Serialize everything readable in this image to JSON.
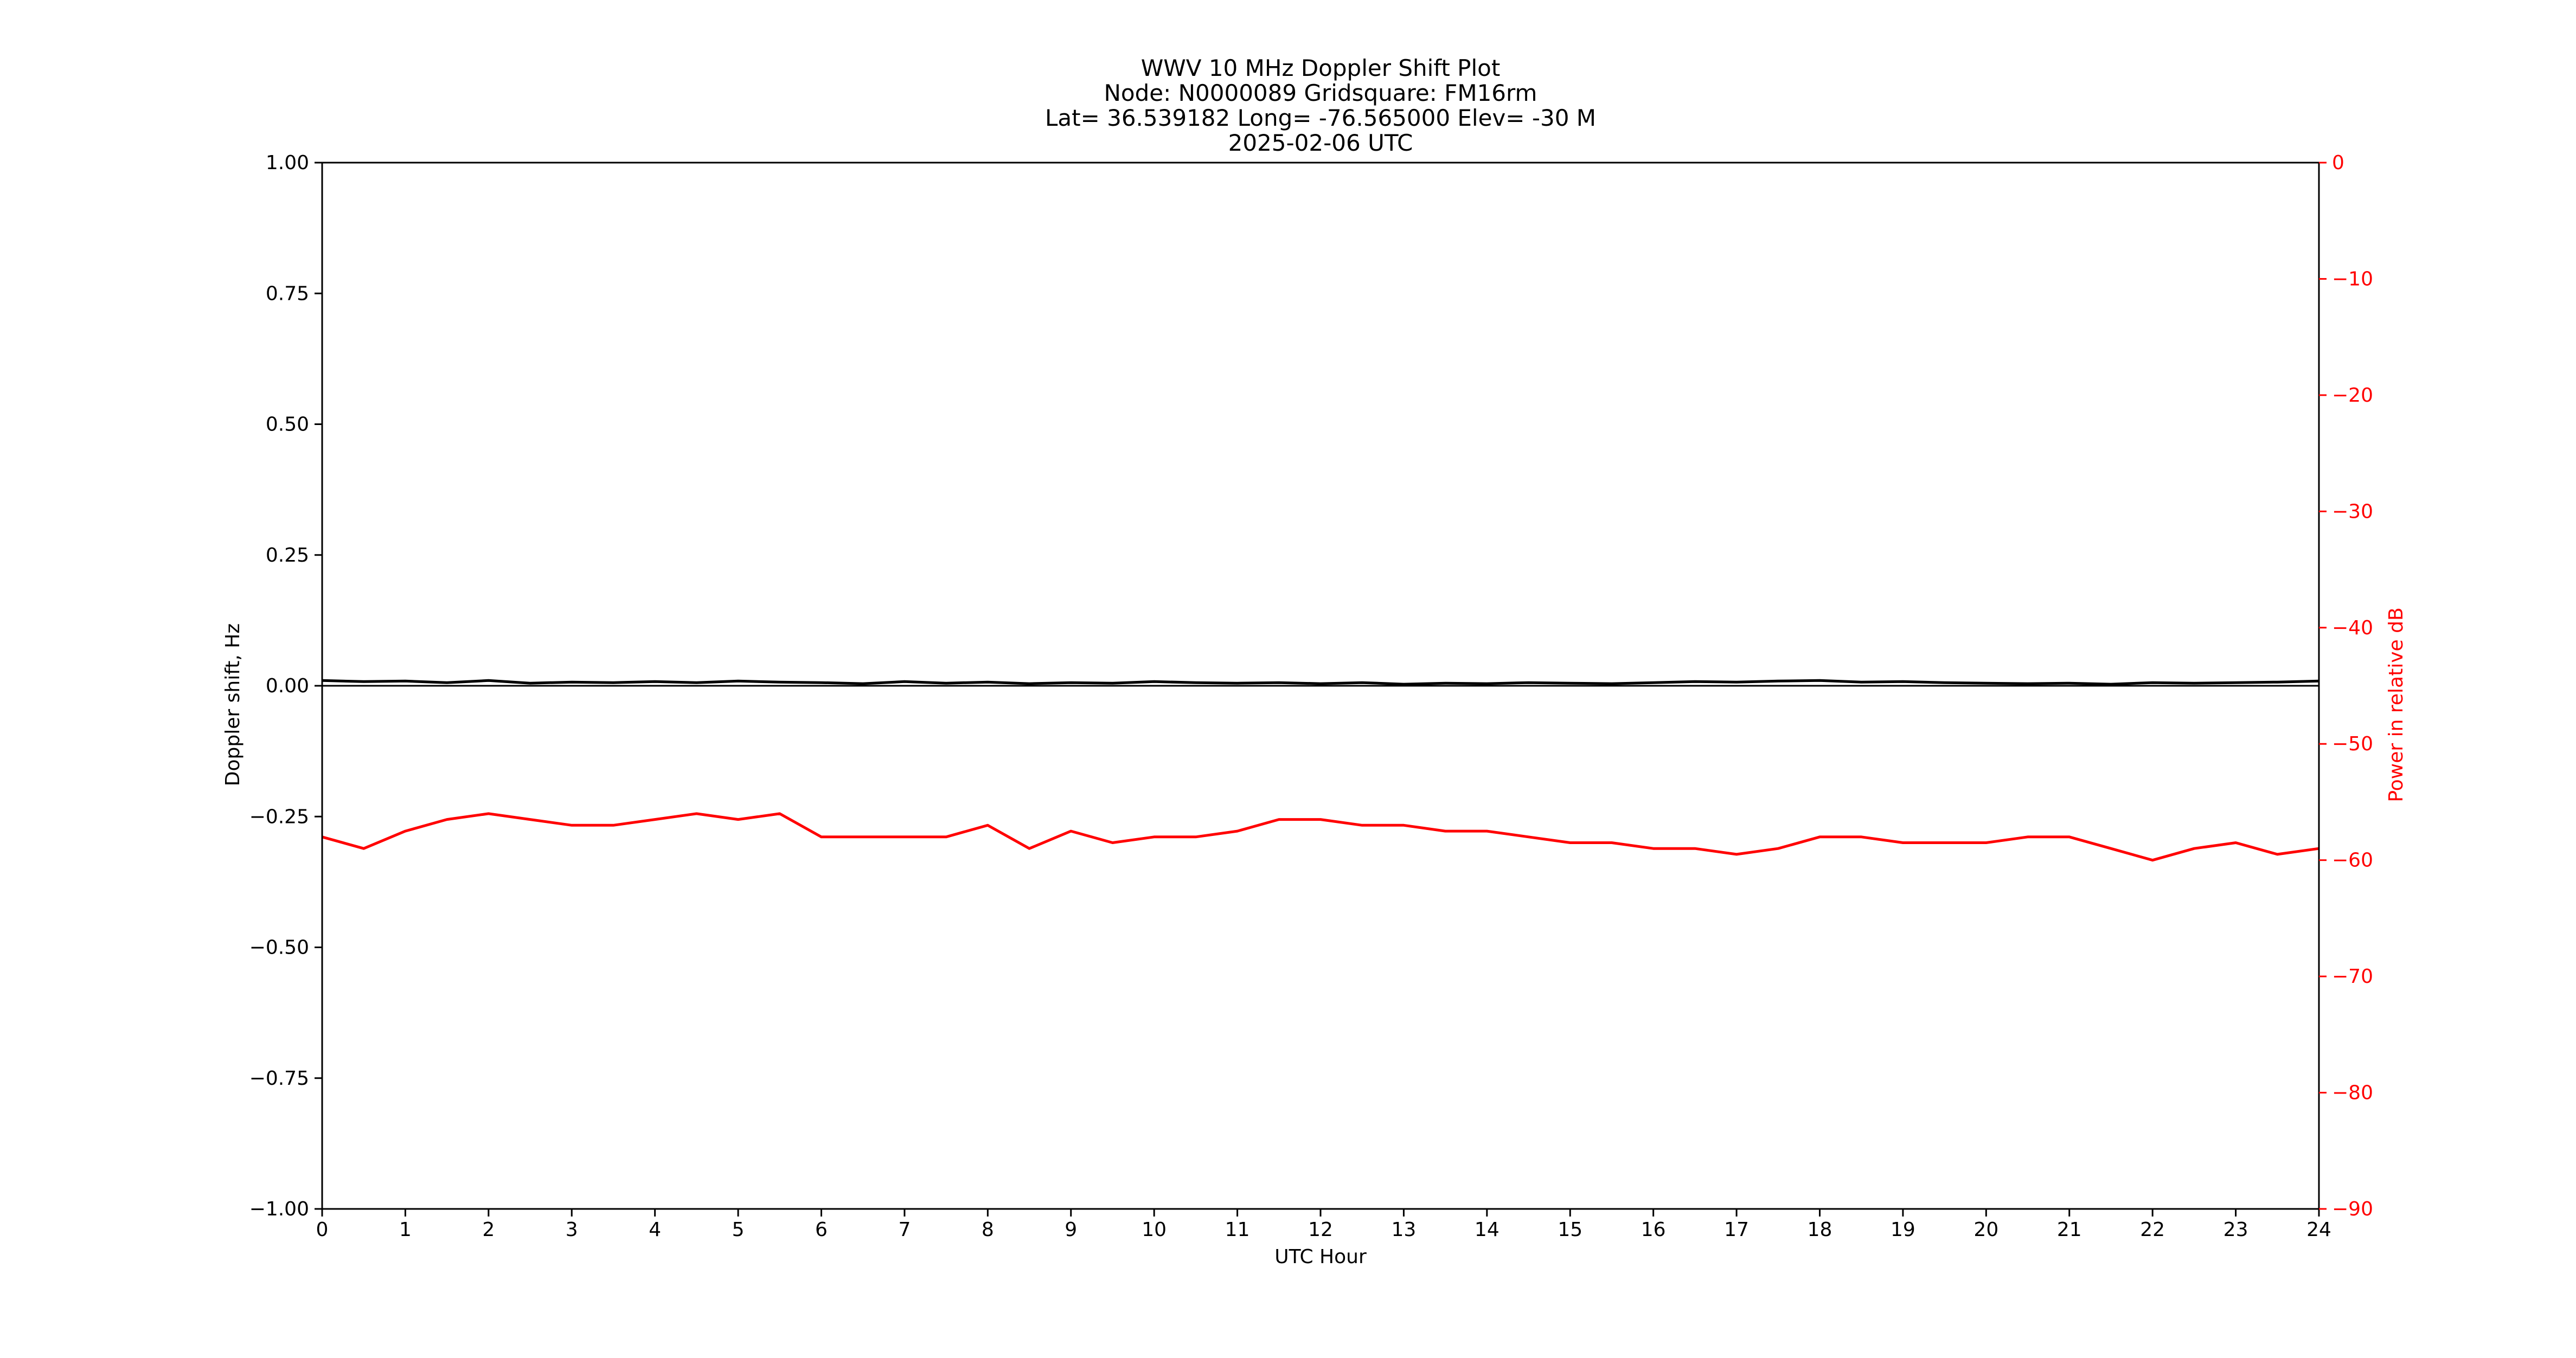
{
  "chart_data": {
    "type": "line",
    "title_lines": [
      "WWV 10 MHz Doppler Shift Plot",
      "Node:  N0000089     Gridsquare:  FM16rm",
      "Lat= 36.539182    Long= -76.565000    Elev= -30 M",
      "2025-02-06  UTC"
    ],
    "xlabel": "UTC Hour",
    "ylabel": "Doppler shift, Hz",
    "y2label": "Power in relative dB",
    "xlim": [
      0,
      24
    ],
    "ylim": [
      -1.0,
      1.0
    ],
    "y2lim": [
      -90,
      0
    ],
    "x_ticks": [
      0,
      1,
      2,
      3,
      4,
      5,
      6,
      7,
      8,
      9,
      10,
      11,
      12,
      13,
      14,
      15,
      16,
      17,
      18,
      19,
      20,
      21,
      22,
      23,
      24
    ],
    "x_tick_labels": [
      "0",
      "1",
      "2",
      "3",
      "4",
      "5",
      "6",
      "7",
      "8",
      "9",
      "10",
      "11",
      "12",
      "13",
      "14",
      "15",
      "16",
      "17",
      "18",
      "19",
      "20",
      "21",
      "22",
      "23",
      "24"
    ],
    "y_ticks": [
      1.0,
      0.75,
      0.5,
      0.25,
      0.0,
      -0.25,
      -0.5,
      -0.75,
      -1.0
    ],
    "y_tick_labels": [
      "1.00",
      "0.75",
      "0.50",
      "0.25",
      "0.00",
      "−0.25",
      "−0.50",
      "−0.75",
      "−1.00"
    ],
    "y2_ticks": [
      0,
      -10,
      -20,
      -30,
      -40,
      -50,
      -60,
      -70,
      -80,
      -90
    ],
    "y2_tick_labels": [
      "0",
      "−10",
      "−20",
      "−30",
      "−40",
      "−50",
      "−60",
      "−70",
      "−80",
      "−90"
    ],
    "grid": false,
    "colors": {
      "doppler": "#000000",
      "power": "#ff0000",
      "right_axis": "#ff0000",
      "axes": "#000000"
    },
    "series": [
      {
        "axis": "left",
        "x": [
          0,
          0.5,
          1,
          1.5,
          2,
          2.5,
          3,
          3.5,
          4,
          4.5,
          5,
          5.5,
          6,
          6.5,
          7,
          7.5,
          8,
          8.5,
          9,
          9.5,
          10,
          10.5,
          11,
          11.5,
          12,
          12.5,
          13,
          13.5,
          14,
          14.5,
          15,
          15.5,
          16,
          16.5,
          17,
          17.5,
          18,
          18.5,
          19,
          19.5,
          20,
          20.5,
          21,
          21.5,
          22,
          22.5,
          23,
          23.5,
          24
        ],
        "values": [
          0.01,
          0.008,
          0.009,
          0.006,
          0.01,
          0.005,
          0.007,
          0.006,
          0.008,
          0.006,
          0.009,
          0.007,
          0.006,
          0.004,
          0.008,
          0.005,
          0.007,
          0.004,
          0.006,
          0.005,
          0.008,
          0.006,
          0.005,
          0.006,
          0.004,
          0.006,
          0.003,
          0.005,
          0.004,
          0.006,
          0.005,
          0.004,
          0.006,
          0.008,
          0.007,
          0.009,
          0.01,
          0.007,
          0.008,
          0.006,
          0.005,
          0.004,
          0.005,
          0.003,
          0.006,
          0.005,
          0.006,
          0.007,
          0.009
        ]
      },
      {
        "axis": "right",
        "x": [
          0,
          0.5,
          1,
          1.5,
          2,
          2.5,
          3,
          3.5,
          4,
          4.5,
          5,
          5.5,
          6,
          6.5,
          7,
          7.5,
          8,
          8.5,
          9,
          9.5,
          10,
          10.5,
          11,
          11.5,
          12,
          12.5,
          13,
          13.5,
          14,
          14.5,
          15,
          15.5,
          16,
          16.5,
          17,
          17.5,
          18,
          18.5,
          19,
          19.5,
          20,
          20.5,
          21,
          21.5,
          22,
          22.5,
          23,
          23.5,
          24
        ],
        "values": [
          -58,
          -59,
          -57.5,
          -56.5,
          -56,
          -56.5,
          -57,
          -57,
          -56.5,
          -56,
          -56.5,
          -56,
          -58,
          -58,
          -58,
          -58,
          -57,
          -59,
          -57.5,
          -58.5,
          -58,
          -58,
          -57.5,
          -56.5,
          -56.5,
          -57,
          -57,
          -57.5,
          -57.5,
          -58,
          -58.5,
          -58.5,
          -59,
          -59,
          -59.5,
          -59,
          -58,
          -58,
          -58.5,
          -58.5,
          -58.5,
          -58,
          -58,
          -59,
          -60,
          -59,
          -58.5,
          -59.5,
          -59
        ]
      }
    ]
  }
}
